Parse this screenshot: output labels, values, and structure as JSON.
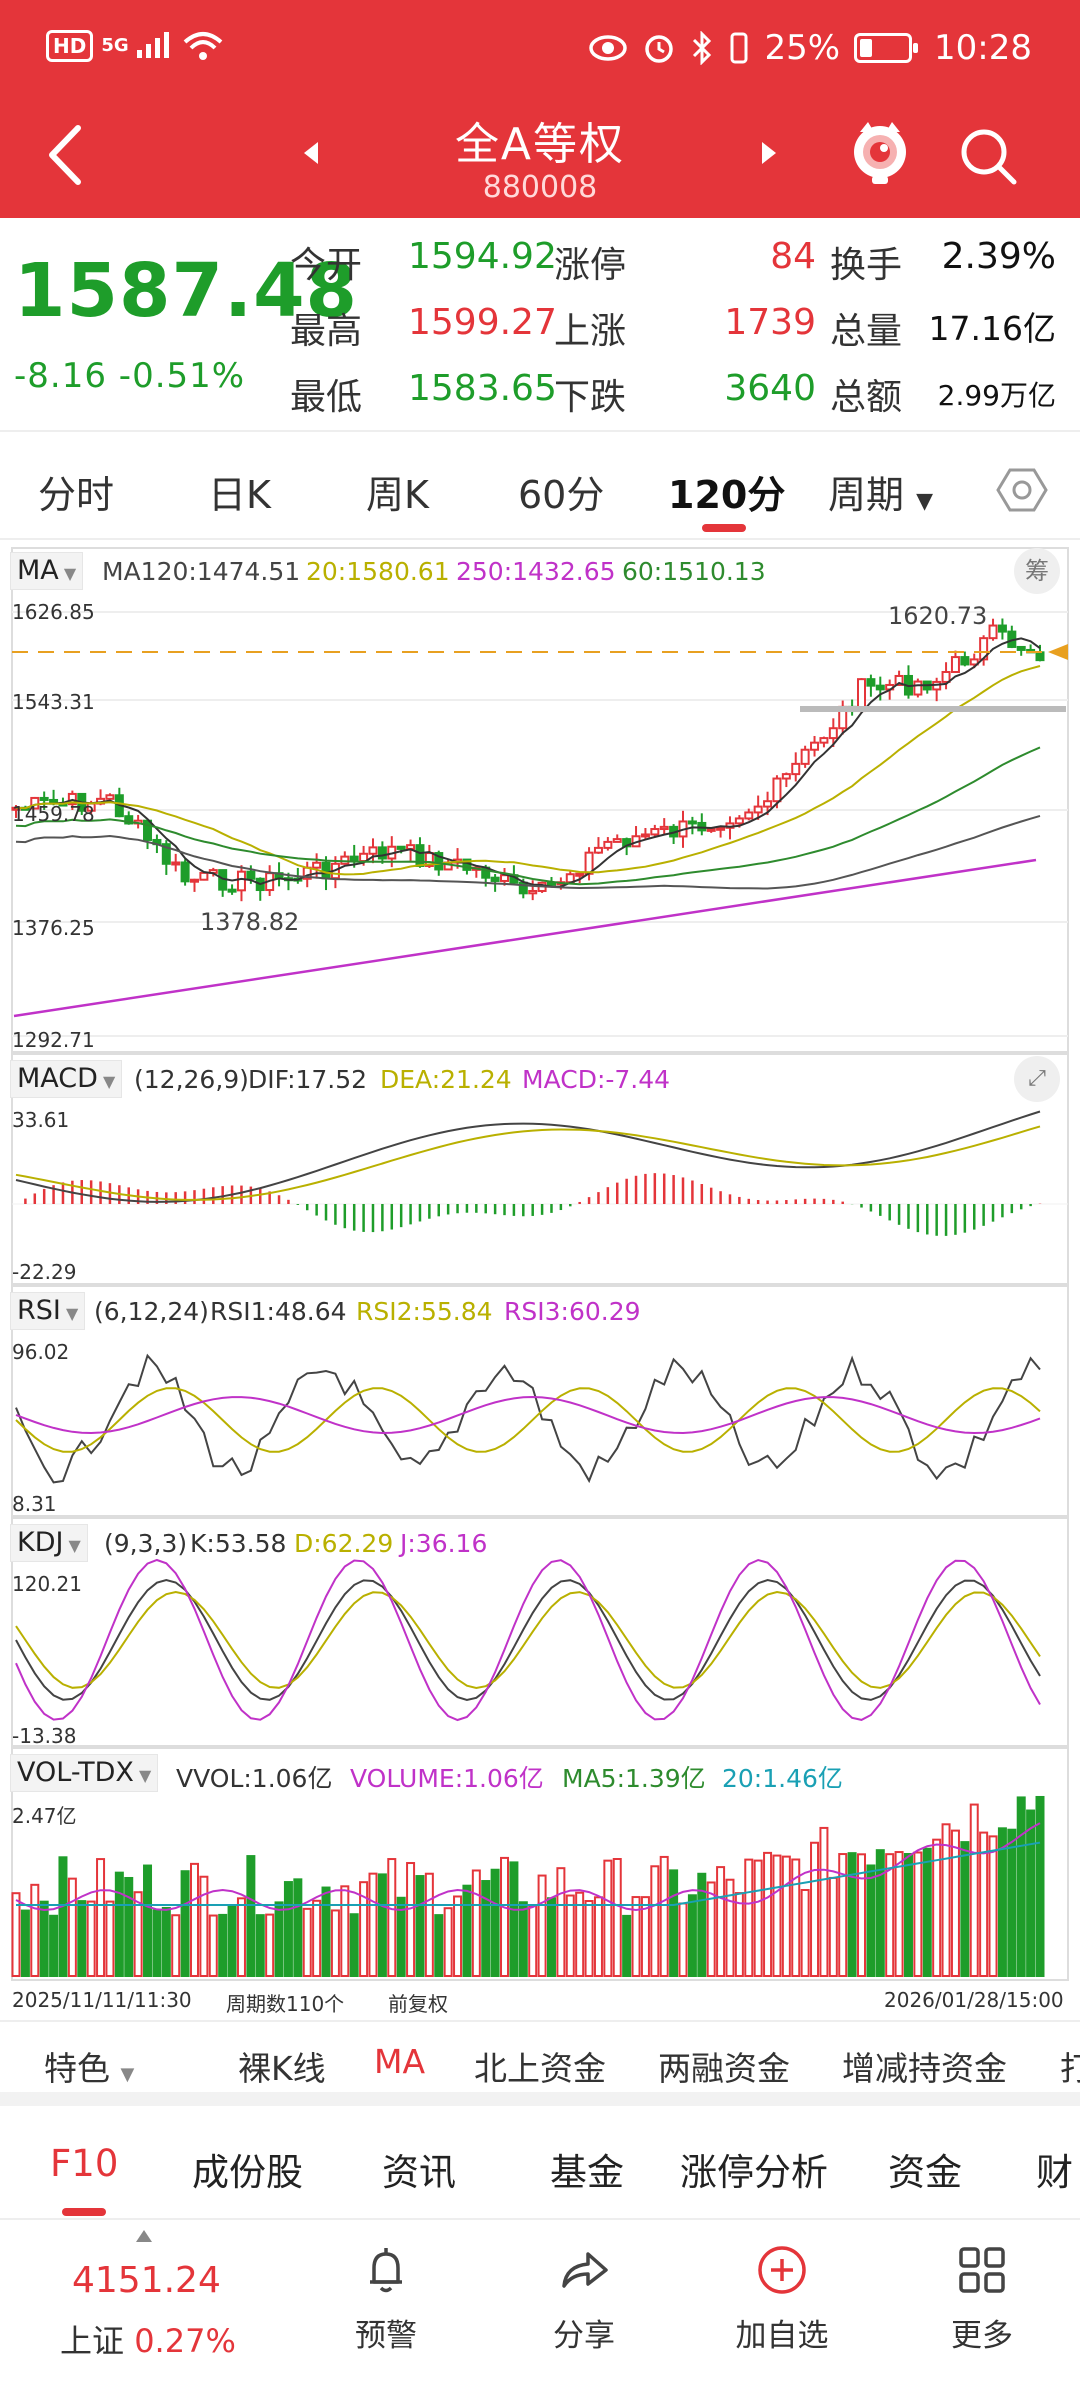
{
  "status_bar": {
    "left": {
      "hd": "HD",
      "signal": "5G"
    },
    "battery": "25%",
    "time": "10:28",
    "icons": [
      "hd-icon",
      "signal-icon",
      "wifi-icon",
      "eye-icon",
      "alarm-icon",
      "bluetooth-icon",
      "vibrate-icon",
      "battery-icon"
    ]
  },
  "nav": {
    "title": "全A等权",
    "code": "880008",
    "icons": [
      "back-icon",
      "prev-triangle-icon",
      "next-triangle-icon",
      "mascot-icon",
      "search-icon"
    ]
  },
  "quote": {
    "price": "1587.48",
    "change": "-8.16",
    "change_pct": "-0.51%",
    "rows": [
      {
        "l1": "今开",
        "v1": "1594.92",
        "l2": "涨停",
        "v2": "84",
        "l3": "换手",
        "v3": "2.39%"
      },
      {
        "l1": "最高",
        "v1": "1599.27",
        "l2": "上涨",
        "v2": "1739",
        "l3": "总量",
        "v3": "17.16亿"
      },
      {
        "l1": "最低",
        "v1": "1583.65",
        "l2": "下跌",
        "v2": "3640",
        "l3": "总额",
        "v3": "2.99万亿"
      }
    ]
  },
  "tabs": [
    "分时",
    "日K",
    "周K",
    "60分",
    "120分",
    "周期"
  ],
  "active_tab": "120分",
  "main_panel": {
    "selector": "MA",
    "ma_values": {
      "ma120": "MA120:1474.51",
      "ma20": "20:1580.61",
      "ma250": "250:1432.65",
      "ma60": "60:1510.13"
    },
    "chip_label": "筹",
    "y_labels": [
      "1626.85",
      "1543.31",
      "1459.78",
      "1376.25",
      "1292.71"
    ],
    "annot_high": "1620.73",
    "annot_low": "1378.82",
    "colors": {
      "up": "#e4353a",
      "down": "#1e9d2a",
      "ma5": "#333333",
      "ma20": "#b9b000",
      "ma60": "#2e8b2e",
      "ma120": "#555555",
      "ma250": "#c032c8",
      "last_price_line": "#e8a020"
    }
  },
  "macd_panel": {
    "selector": "MACD",
    "params": "(12,26,9)",
    "dif": "DIF:17.52",
    "dea": "DEA:21.24",
    "macd": "MACD:-7.44",
    "y_top": "33.61",
    "y_bottom": "-22.29"
  },
  "rsi_panel": {
    "selector": "RSI",
    "params": "(6,12,24)",
    "rsi1": "RSI1:48.64",
    "rsi2": "RSI2:55.84",
    "rsi3": "RSI3:60.29",
    "y_top": "96.02",
    "y_bottom": "8.31"
  },
  "kdj_panel": {
    "selector": "KDJ",
    "params": "(9,3,3)",
    "k": "K:53.58",
    "d": "D:62.29",
    "j": "J:36.16",
    "y_top": "120.21",
    "y_bottom": "-13.38"
  },
  "vol_panel": {
    "selector": "VOL-TDX",
    "vvol": "VVOL:1.06亿",
    "volume": "VOLUME:1.06亿",
    "ma5": "MA5:1.39亿",
    "ma20": "20:1.46亿",
    "y_top": "2.47亿"
  },
  "footer_info": {
    "start": "2025/11/11/11:30",
    "count": "周期数110个",
    "adjust": "前复权",
    "end": "2026/01/28/15:00"
  },
  "indicators": [
    "特色",
    "裸K线",
    "MA",
    "北上资金",
    "两融资金",
    "增减持资金",
    "打"
  ],
  "active_indicator": "MA",
  "f10_tabs": [
    "F10",
    "成份股",
    "资讯",
    "基金",
    "涨停分析",
    "资金",
    "财"
  ],
  "active_f10": "F10",
  "bottom": {
    "index_value": "4151.24",
    "index_name": "上证",
    "index_pct": "0.27%",
    "items": [
      {
        "label": "预警",
        "icon": "bell-icon"
      },
      {
        "label": "分享",
        "icon": "share-icon"
      },
      {
        "label": "加自选",
        "icon": "add-circle-icon"
      },
      {
        "label": "更多",
        "icon": "grid-icon"
      }
    ]
  }
}
